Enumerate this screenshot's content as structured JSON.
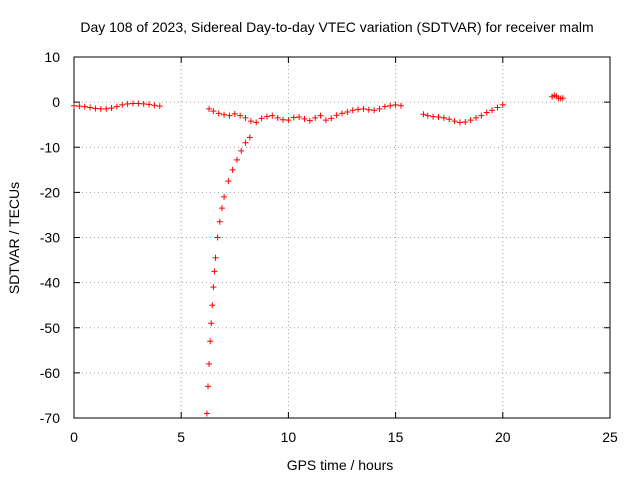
{
  "chart_data": {
    "type": "scatter",
    "title": "Day 108 of 2023, Sidereal Day-to-day VTEC variation (SDTVAR) for receiver malm",
    "xlabel": "GPS time / hours",
    "ylabel": "SDTVAR / TECUs",
    "xlim": [
      0,
      25
    ],
    "ylim": [
      -70,
      10
    ],
    "xticks": [
      0,
      5,
      10,
      15,
      20,
      25
    ],
    "yticks": [
      -70,
      -60,
      -50,
      -40,
      -30,
      -20,
      -10,
      0,
      10
    ],
    "xtick_labels": [
      "0",
      "5",
      "10",
      "15",
      "20",
      "25"
    ],
    "ytick_labels": [
      "-70",
      "-60",
      "-50",
      "-40",
      "-30",
      "-20",
      "-10",
      "0",
      "10"
    ],
    "grid": true,
    "marker": "+",
    "color": "#ff0000",
    "series": [
      {
        "name": "SDTVAR segment 1",
        "x": [
          0.0,
          0.25,
          0.5,
          0.75,
          1.0,
          1.25,
          1.5,
          1.75,
          2.0,
          2.25,
          2.5,
          2.75,
          3.0,
          3.25,
          3.5,
          3.75,
          4.0
        ],
        "y": [
          -0.8,
          -0.9,
          -1.0,
          -1.2,
          -1.4,
          -1.5,
          -1.5,
          -1.3,
          -1.0,
          -0.6,
          -0.4,
          -0.3,
          -0.3,
          -0.4,
          -0.5,
          -0.7,
          -0.9
        ]
      },
      {
        "name": "SDTVAR segment 2",
        "x": [
          6.2,
          6.25,
          6.3,
          6.35,
          6.4,
          6.45,
          6.5,
          6.55,
          6.6,
          6.7,
          6.8,
          6.9,
          7.0,
          7.2,
          7.4,
          7.6,
          7.8,
          8.0,
          8.2
        ],
        "y": [
          -69.0,
          -63.0,
          -58.0,
          -53.0,
          -49.0,
          -45.0,
          -41.0,
          -37.5,
          -34.5,
          -30.0,
          -26.5,
          -23.5,
          -21.0,
          -17.5,
          -15.0,
          -12.8,
          -10.8,
          -9.0,
          -7.8
        ]
      },
      {
        "name": "SDTVAR segment 3",
        "x": [
          6.3,
          6.5,
          6.75,
          7.0,
          7.25,
          7.5,
          7.75,
          8.0,
          8.25,
          8.5,
          8.75,
          9.0,
          9.25,
          9.5,
          9.75,
          10.0,
          10.25,
          10.5,
          10.75,
          11.0,
          11.25,
          11.5,
          11.75,
          12.0,
          12.25,
          12.5,
          12.75,
          13.0,
          13.25,
          13.5,
          13.75,
          14.0,
          14.25,
          14.5,
          14.75,
          15.0,
          15.25
        ],
        "y": [
          -1.5,
          -2.0,
          -2.5,
          -2.8,
          -3.0,
          -2.6,
          -3.0,
          -3.5,
          -4.2,
          -4.5,
          -3.6,
          -3.2,
          -3.0,
          -3.5,
          -3.9,
          -4.0,
          -3.4,
          -3.3,
          -3.7,
          -4.1,
          -3.5,
          -3.0,
          -4.0,
          -3.6,
          -2.9,
          -2.5,
          -2.2,
          -1.8,
          -1.6,
          -1.5,
          -1.7,
          -1.8,
          -1.5,
          -1.0,
          -0.8,
          -0.6,
          -0.8
        ]
      },
      {
        "name": "SDTVAR segment 4",
        "x": [
          16.3,
          16.5,
          16.75,
          17.0,
          17.25,
          17.5,
          17.75,
          18.0,
          18.25,
          18.5,
          18.75,
          19.0,
          19.25,
          19.5,
          19.75,
          20.0
        ],
        "y": [
          -2.7,
          -3.0,
          -3.2,
          -3.3,
          -3.5,
          -3.8,
          -4.2,
          -4.5,
          -4.4,
          -4.0,
          -3.5,
          -3.0,
          -2.3,
          -1.8,
          -1.2,
          -0.6
        ]
      },
      {
        "name": "SDTVAR segment 5",
        "x": [
          22.3,
          22.4,
          22.5,
          22.6,
          22.7,
          22.8
        ],
        "y": [
          1.2,
          1.5,
          1.3,
          0.9,
          0.8,
          0.9
        ]
      }
    ]
  }
}
